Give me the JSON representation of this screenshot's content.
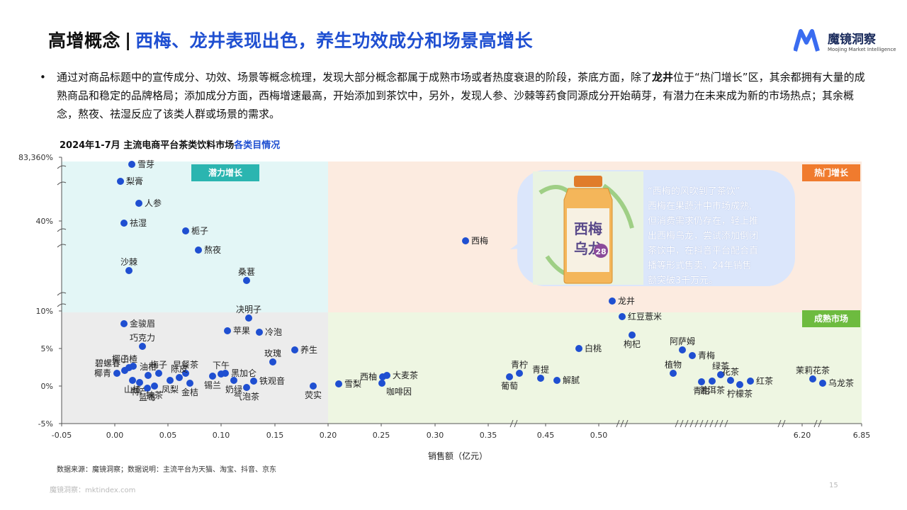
{
  "header": {
    "title_main": "高增概念",
    "separator": "|",
    "title_sub": "西梅、龙井表现出色，养生功效成分和场景高增长"
  },
  "logo": {
    "name": "魔镜洞察",
    "tagline": "Moojing Market Intelligence",
    "color": "#3a6cf0"
  },
  "paragraph": {
    "bullet": "•",
    "part1": "通过对商品标题中的宣传成分、功效、场景等概念梳理，发现大部分概念都属于成熟市场或者热度衰退的阶段，茶底方面，除了",
    "bold": "龙井",
    "part2": "位于“热门增长”区，其余都拥有大量的成熟商品和稳定的品牌格局；添加成分方面，西梅增速最高，开始添加到茶饮中，另外，发现人参、沙棘等药食同源成分开始萌芽，有潜力在未来成为新的市场热点；其余概念，熬夜、祛湿反应了该类人群或场景的需求。"
  },
  "chart_title": {
    "main": "2024年1-7月 主流电商平台茶类饮料市场",
    "highlight": "各类目情况"
  },
  "callout": {
    "lines": [
      "“西梅的风吹到了茶饮”",
      "西梅在果蔬汁中市场成熟,",
      "但消费需求仍存在，轻上推",
      "出西梅乌龙，尝试添加倒闭",
      "茶饮中，在抖音平台配合直",
      "播等形式售卖，24年销售",
      "额突破3千万元。"
    ],
    "product_label": "西梅乌龙",
    "product_number": "28"
  },
  "footnote": "数据来源：魔镜洞察；数据说明：主流平台为天猫、淘宝、抖音、京东",
  "footer_url": "魔镜洞察：mktindex.com",
  "page_number": "15",
  "chart_data": {
    "type": "scatter",
    "title": "2024年1-7月 主流电商平台茶类饮料市场各类目情况",
    "xlabel": "销售额（亿元）",
    "ylabel": "",
    "x_axis_note": "broken axis: linear -0.05 to 0.50, then breaks to 6.20 and 6.85",
    "x_ticks": [
      "-0.05",
      "0.00",
      "0.05",
      "0.10",
      "0.15",
      "0.20",
      "0.25",
      "0.30",
      "0.35",
      "0.45",
      "0.50",
      "6.20",
      "6.85"
    ],
    "y_ticks": [
      "-5%",
      "0%",
      "5%",
      "10%",
      "40%",
      "83,360%"
    ],
    "y_axis_note": "broken axis: linear -5% to 10%, then compressed break to 40% and 83,360%",
    "quadrants": [
      {
        "label": "潜力增长",
        "color": "#2bb5b0",
        "bg": "#e3f6f6"
      },
      {
        "label": "热门增长",
        "color": "#f07b2e",
        "bg": "#fcebe0"
      },
      {
        "label": "成熟市场",
        "color": "#6dbb3f",
        "bg": "#eef6e2"
      },
      {
        "label": "",
        "color": "",
        "bg": "#ececec"
      }
    ],
    "point_color": "#1f4fd1",
    "points": [
      {
        "name": "雪芽",
        "x": 0.017,
        "y": "83360%"
      },
      {
        "name": "梨膏",
        "x": 0.007,
        "y": "high"
      },
      {
        "name": "人参",
        "x": 0.024,
        "y": "high"
      },
      {
        "name": "祛湿",
        "x": 0.009,
        "y": "40%"
      },
      {
        "name": "栀子",
        "x": 0.067,
        "y": "~35%"
      },
      {
        "name": "熬夜",
        "x": 0.079,
        "y": "~30%"
      },
      {
        "name": "沙棘",
        "x": 0.014,
        "y": "~22%"
      },
      {
        "name": "桑葚",
        "x": 0.124,
        "y": "~18%"
      },
      {
        "name": "西梅",
        "x": 0.33,
        "y": "~35%"
      },
      {
        "name": "龙井",
        "x": 0.52,
        "y": "~12%"
      },
      {
        "name": "决明子",
        "x": 0.125,
        "y": 9.2
      },
      {
        "name": "金骏眉",
        "x": 0.009,
        "y": 8.3
      },
      {
        "name": "红豆薏米",
        "x": 0.53,
        "y": 9.4
      },
      {
        "name": "苹果",
        "x": 0.106,
        "y": 7.3
      },
      {
        "name": "冷泡",
        "x": 0.135,
        "y": 7.1
      },
      {
        "name": "枸杞",
        "x": 0.54,
        "y": 6.8
      },
      {
        "name": "巧克力",
        "x": 0.028,
        "y": 6.2
      },
      {
        "name": "椰子",
        "x": 0.026,
        "y": 5.3
      },
      {
        "name": "白桃",
        "x": 0.49,
        "y": 5.0
      },
      {
        "name": "养生",
        "x": 0.168,
        "y": 4.9
      },
      {
        "name": "阿萨姆",
        "x": "~1.5",
        "y": 4.8
      },
      {
        "name": "青梅",
        "x": "~1.6",
        "y": 4.2
      },
      {
        "name": "山楂",
        "x": 0.017,
        "y": 2.8
      },
      {
        "name": "玫瑰",
        "x": 0.148,
        "y": 3.3
      },
      {
        "name": "碧螺春",
        "x": 0.011,
        "y": 2.2
      },
      {
        "name": "油柑",
        "x": 0.032,
        "y": 1.7
      },
      {
        "name": "梅子",
        "x": 0.042,
        "y": 1.9
      },
      {
        "name": "早餐茶",
        "x": 0.066,
        "y": 1.9
      },
      {
        "name": "陈皮",
        "x": 0.059,
        "y": 1.3
      },
      {
        "name": "下午",
        "x": 0.105,
        "y": 1.5
      },
      {
        "name": "黑加仑",
        "x": 0.11,
        "y": 1.8
      },
      {
        "name": "椰青",
        "x": 0.002,
        "y": 1.7
      },
      {
        "name": "植物",
        "x": "~1.4",
        "y": 1.8
      },
      {
        "name": "青柠",
        "x": 0.39,
        "y": 1.8
      },
      {
        "name": "西柚",
        "x": 0.255,
        "y": 1.5
      },
      {
        "name": "大麦茶",
        "x": 0.255,
        "y": 1.5
      },
      {
        "name": "山楂2",
        "x": 0.02,
        "y": 1.3
      },
      {
        "name": "特产",
        "x": 0.025,
        "y": 0.8
      },
      {
        "name": "蓝莓",
        "x": 0.03,
        "y": 0.4
      },
      {
        "name": "抹茶",
        "x": 0.039,
        "y": 0.3
      },
      {
        "name": "凤梨",
        "x": 0.05,
        "y": 1.0
      },
      {
        "name": "金桔",
        "x": 0.071,
        "y": 0.5
      },
      {
        "name": "锡兰",
        "x": 0.094,
        "y": 0.9
      },
      {
        "name": "奶绿",
        "x": 0.112,
        "y": 0.8
      },
      {
        "name": "气泡茶",
        "x": 0.123,
        "y": 0.2
      },
      {
        "name": "铁观音",
        "x": 0.129,
        "y": 0.7
      },
      {
        "name": "荧实",
        "x": 0.186,
        "y": 0.2
      },
      {
        "name": "雪梨",
        "x": 0.21,
        "y": 0.4
      },
      {
        "name": "咖啡因",
        "x": 0.25,
        "y": 0.5
      },
      {
        "name": "青提",
        "x": 0.43,
        "y": 1.1
      },
      {
        "name": "葡萄",
        "x": 0.385,
        "y": 1.3
      },
      {
        "name": "解腻",
        "x": 0.47,
        "y": 0.9
      },
      {
        "name": "绿茶",
        "x": "~1.7",
        "y": 1.6
      },
      {
        "name": "花茶",
        "x": "~1.9",
        "y": 1.7
      },
      {
        "name": "青柑",
        "x": "~1.45",
        "y": 0.8
      },
      {
        "name": "普洱茶",
        "x": "~1.6",
        "y": 0.7
      },
      {
        "name": "柠檬茶",
        "x": "~2.0",
        "y": 0.3
      },
      {
        "name": "红茶",
        "x": "~2.2",
        "y": 0.7
      },
      {
        "name": "茉莉花茶",
        "x": 6.2,
        "y": 1.1
      },
      {
        "name": "乌龙茶",
        "x": 6.35,
        "y": 0.6
      }
    ]
  }
}
